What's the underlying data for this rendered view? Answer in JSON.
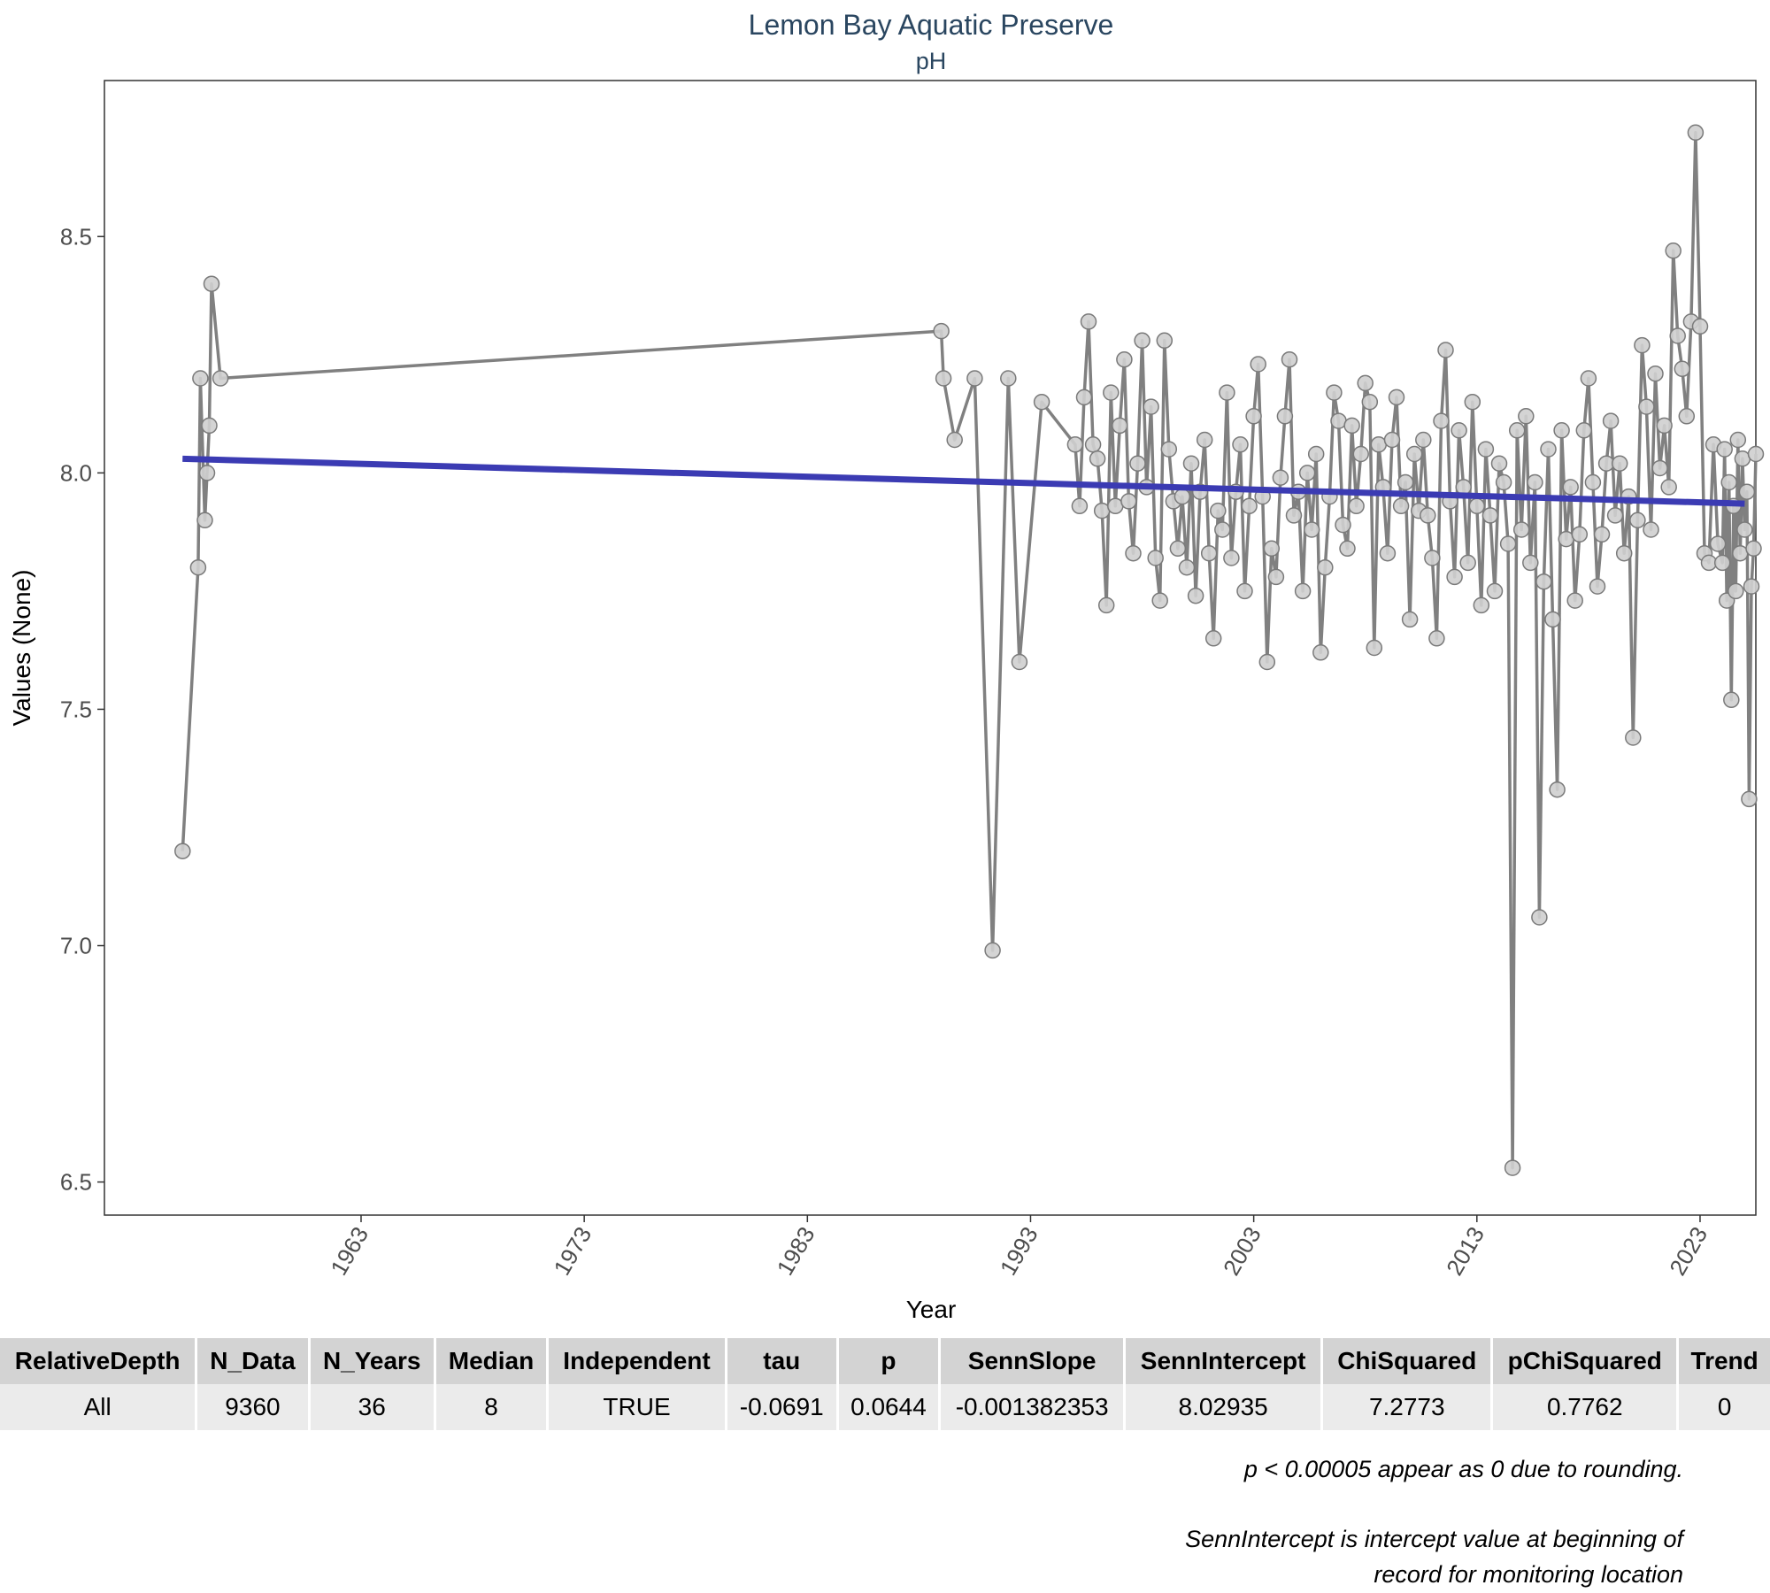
{
  "chart_data": {
    "type": "line",
    "title": "Lemon Bay Aquatic Preserve",
    "subtitle": "pH",
    "xlabel": "Year",
    "ylabel": "Values (None)",
    "xlim": [
      1951.5,
      2025.5
    ],
    "ylim": [
      6.43,
      8.83
    ],
    "x_ticks": [
      1963,
      1973,
      1983,
      1993,
      2003,
      2013,
      2023
    ],
    "y_ticks": [
      6.5,
      7.0,
      7.5,
      8.0,
      8.5
    ],
    "y_tick_labels": [
      "6.5",
      "7.0",
      "7.5",
      "8.0",
      "8.5"
    ],
    "grid": false,
    "colors": {
      "line": "#808080",
      "point_fill": "#cfcfcf",
      "point_stroke": "#7a7a7a",
      "trend": "#3b3bb3",
      "title": "#2a4660"
    },
    "series": [
      {
        "points": [
          [
            1955.0,
            7.2
          ],
          [
            1955.7,
            7.8
          ],
          [
            1955.8,
            8.2
          ],
          [
            1956.0,
            7.9
          ],
          [
            1956.1,
            8.0
          ],
          [
            1956.2,
            8.1
          ],
          [
            1956.3,
            8.4
          ],
          [
            1956.7,
            8.2
          ],
          [
            1989.0,
            8.3
          ],
          [
            1989.1,
            8.2
          ],
          [
            1989.6,
            8.07
          ],
          [
            1990.5,
            8.2
          ],
          [
            1991.3,
            6.99
          ],
          [
            1992.0,
            8.2
          ],
          [
            1992.5,
            7.6
          ],
          [
            1993.5,
            8.15
          ],
          [
            1995.0,
            8.06
          ],
          [
            1995.2,
            7.93
          ],
          [
            1995.4,
            8.16
          ],
          [
            1995.6,
            8.32
          ],
          [
            1995.8,
            8.06
          ],
          [
            1996.0,
            8.03
          ],
          [
            1996.2,
            7.92
          ],
          [
            1996.4,
            7.72
          ],
          [
            1996.6,
            8.17
          ],
          [
            1996.8,
            7.93
          ],
          [
            1997.0,
            8.1
          ],
          [
            1997.2,
            8.24
          ],
          [
            1997.4,
            7.94
          ],
          [
            1997.6,
            7.83
          ],
          [
            1997.8,
            8.02
          ],
          [
            1998.0,
            8.28
          ],
          [
            1998.2,
            7.97
          ],
          [
            1998.4,
            8.14
          ],
          [
            1998.6,
            7.82
          ],
          [
            1998.8,
            7.73
          ],
          [
            1999.0,
            8.28
          ],
          [
            1999.2,
            8.05
          ],
          [
            1999.4,
            7.94
          ],
          [
            1999.6,
            7.84
          ],
          [
            1999.8,
            7.95
          ],
          [
            2000.0,
            7.8
          ],
          [
            2000.2,
            8.02
          ],
          [
            2000.4,
            7.74
          ],
          [
            2000.6,
            7.96
          ],
          [
            2000.8,
            8.07
          ],
          [
            2001.0,
            7.83
          ],
          [
            2001.2,
            7.65
          ],
          [
            2001.4,
            7.92
          ],
          [
            2001.6,
            7.88
          ],
          [
            2001.8,
            8.17
          ],
          [
            2002.0,
            7.82
          ],
          [
            2002.2,
            7.96
          ],
          [
            2002.4,
            8.06
          ],
          [
            2002.6,
            7.75
          ],
          [
            2002.8,
            7.93
          ],
          [
            2003.0,
            8.12
          ],
          [
            2003.2,
            8.23
          ],
          [
            2003.4,
            7.95
          ],
          [
            2003.6,
            7.6
          ],
          [
            2003.8,
            7.84
          ],
          [
            2004.0,
            7.78
          ],
          [
            2004.2,
            7.99
          ],
          [
            2004.4,
            8.12
          ],
          [
            2004.6,
            8.24
          ],
          [
            2004.8,
            7.91
          ],
          [
            2005.0,
            7.96
          ],
          [
            2005.2,
            7.75
          ],
          [
            2005.4,
            8.0
          ],
          [
            2005.6,
            7.88
          ],
          [
            2005.8,
            8.04
          ],
          [
            2006.0,
            7.62
          ],
          [
            2006.2,
            7.8
          ],
          [
            2006.4,
            7.95
          ],
          [
            2006.6,
            8.17
          ],
          [
            2006.8,
            8.11
          ],
          [
            2007.0,
            7.89
          ],
          [
            2007.2,
            7.84
          ],
          [
            2007.4,
            8.1
          ],
          [
            2007.6,
            7.93
          ],
          [
            2007.8,
            8.04
          ],
          [
            2008.0,
            8.19
          ],
          [
            2008.2,
            8.15
          ],
          [
            2008.4,
            7.63
          ],
          [
            2008.6,
            8.06
          ],
          [
            2008.8,
            7.97
          ],
          [
            2009.0,
            7.83
          ],
          [
            2009.2,
            8.07
          ],
          [
            2009.4,
            8.16
          ],
          [
            2009.6,
            7.93
          ],
          [
            2009.8,
            7.98
          ],
          [
            2010.0,
            7.69
          ],
          [
            2010.2,
            8.04
          ],
          [
            2010.4,
            7.92
          ],
          [
            2010.6,
            8.07
          ],
          [
            2010.8,
            7.91
          ],
          [
            2011.0,
            7.82
          ],
          [
            2011.2,
            7.65
          ],
          [
            2011.4,
            8.11
          ],
          [
            2011.6,
            8.26
          ],
          [
            2011.8,
            7.94
          ],
          [
            2012.0,
            7.78
          ],
          [
            2012.2,
            8.09
          ],
          [
            2012.4,
            7.97
          ],
          [
            2012.6,
            7.81
          ],
          [
            2012.8,
            8.15
          ],
          [
            2013.0,
            7.93
          ],
          [
            2013.2,
            7.72
          ],
          [
            2013.4,
            8.05
          ],
          [
            2013.6,
            7.91
          ],
          [
            2013.8,
            7.75
          ],
          [
            2014.0,
            8.02
          ],
          [
            2014.2,
            7.98
          ],
          [
            2014.4,
            7.85
          ],
          [
            2014.6,
            6.53
          ],
          [
            2014.8,
            8.09
          ],
          [
            2015.0,
            7.88
          ],
          [
            2015.2,
            8.12
          ],
          [
            2015.4,
            7.81
          ],
          [
            2015.6,
            7.98
          ],
          [
            2015.8,
            7.06
          ],
          [
            2016.0,
            7.77
          ],
          [
            2016.2,
            8.05
          ],
          [
            2016.4,
            7.69
          ],
          [
            2016.6,
            7.33
          ],
          [
            2016.8,
            8.09
          ],
          [
            2017.0,
            7.86
          ],
          [
            2017.2,
            7.97
          ],
          [
            2017.4,
            7.73
          ],
          [
            2017.6,
            7.87
          ],
          [
            2017.8,
            8.09
          ],
          [
            2018.0,
            8.2
          ],
          [
            2018.2,
            7.98
          ],
          [
            2018.4,
            7.76
          ],
          [
            2018.6,
            7.87
          ],
          [
            2018.8,
            8.02
          ],
          [
            2019.0,
            8.11
          ],
          [
            2019.2,
            7.91
          ],
          [
            2019.4,
            8.02
          ],
          [
            2019.6,
            7.83
          ],
          [
            2019.8,
            7.95
          ],
          [
            2020.0,
            7.44
          ],
          [
            2020.2,
            7.9
          ],
          [
            2020.4,
            8.27
          ],
          [
            2020.6,
            8.14
          ],
          [
            2020.8,
            7.88
          ],
          [
            2021.0,
            8.21
          ],
          [
            2021.2,
            8.01
          ],
          [
            2021.4,
            8.1
          ],
          [
            2021.6,
            7.97
          ],
          [
            2021.8,
            8.47
          ],
          [
            2022.0,
            8.29
          ],
          [
            2022.2,
            8.22
          ],
          [
            2022.4,
            8.12
          ],
          [
            2022.6,
            8.32
          ],
          [
            2022.8,
            8.72
          ],
          [
            2023.0,
            8.31
          ],
          [
            2023.2,
            7.83
          ],
          [
            2023.4,
            7.81
          ],
          [
            2023.6,
            8.06
          ],
          [
            2023.8,
            7.85
          ],
          [
            2024.0,
            7.81
          ],
          [
            2024.1,
            8.05
          ],
          [
            2024.2,
            7.73
          ],
          [
            2024.3,
            7.98
          ],
          [
            2024.4,
            7.52
          ],
          [
            2024.5,
            7.93
          ],
          [
            2024.6,
            7.75
          ],
          [
            2024.7,
            8.07
          ],
          [
            2024.8,
            7.83
          ],
          [
            2024.9,
            8.03
          ],
          [
            2025.0,
            7.88
          ],
          [
            2025.1,
            7.96
          ],
          [
            2025.2,
            7.31
          ],
          [
            2025.3,
            7.76
          ],
          [
            2025.4,
            7.84
          ],
          [
            2025.5,
            8.04
          ]
        ]
      }
    ],
    "trend_line": {
      "x": [
        1955.0,
        2025.0
      ],
      "y": [
        8.03,
        7.935
      ]
    }
  },
  "table": {
    "headers": [
      "RelativeDepth",
      "N_Data",
      "N_Years",
      "Median",
      "Independent",
      "tau",
      "p",
      "SennSlope",
      "SennIntercept",
      "ChiSquared",
      "pChiSquared",
      "Trend"
    ],
    "rows": [
      [
        "All",
        "9360",
        "36",
        "8",
        "TRUE",
        "-0.0691",
        "0.0644",
        "-0.001382353",
        "8.02935",
        "7.2773",
        "0.7762",
        "0"
      ]
    ]
  },
  "footnotes": {
    "rounding": "p < 0.00005 appear as 0 due to rounding.",
    "intercept_line1": "SennIntercept is intercept value at beginning of",
    "intercept_line2": "record for monitoring location"
  }
}
